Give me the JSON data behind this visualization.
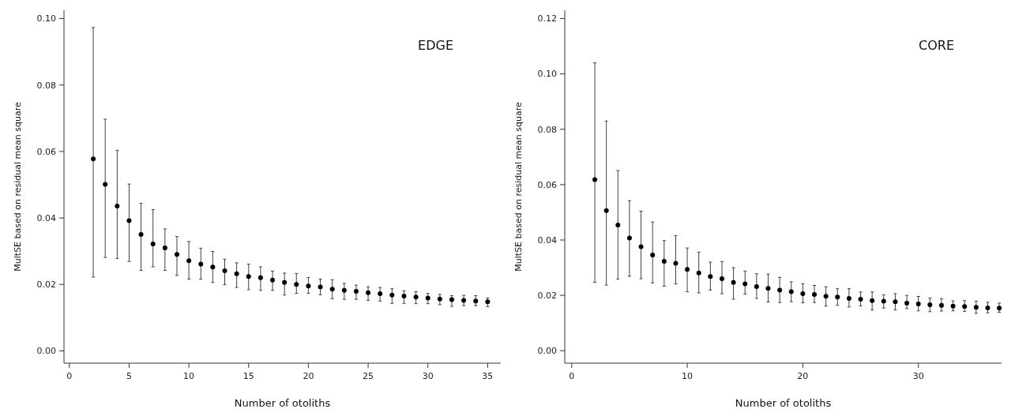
{
  "chart_data": [
    {
      "type": "scatter",
      "title": "EDGE",
      "xlabel": "Number of otoliths",
      "ylabel": "MultSE based on residual mean square",
      "marker": "circle",
      "grid": false,
      "x": [
        2,
        3,
        4,
        5,
        6,
        7,
        8,
        9,
        10,
        11,
        12,
        13,
        14,
        15,
        16,
        17,
        18,
        19,
        20,
        21,
        22,
        23,
        24,
        25,
        26,
        27,
        28,
        29,
        30,
        31,
        32,
        33,
        34,
        35
      ],
      "series": [
        {
          "color": "#000000",
          "values": [
            0.0578,
            0.0501,
            0.0436,
            0.0392,
            0.035,
            0.0322,
            0.031,
            0.029,
            0.0271,
            0.0261,
            0.0252,
            0.0241,
            0.0232,
            0.0224,
            0.022,
            0.0213,
            0.0206,
            0.02,
            0.0195,
            0.0192,
            0.0186,
            0.0182,
            0.0179,
            0.0175,
            0.0172,
            0.0168,
            0.0165,
            0.0162,
            0.0159,
            0.0156,
            0.0154,
            0.0152,
            0.015,
            0.0148
          ],
          "errors": [
            [
              0.0222,
              0.0973
            ],
            [
              0.0281,
              0.0697
            ],
            [
              0.0278,
              0.0603
            ],
            [
              0.0269,
              0.0502
            ],
            [
              0.0242,
              0.0444
            ],
            [
              0.0253,
              0.0425
            ],
            [
              0.0242,
              0.0367
            ],
            [
              0.0227,
              0.0344
            ],
            [
              0.0216,
              0.0329
            ],
            [
              0.0216,
              0.0309
            ],
            [
              0.0206,
              0.0299
            ],
            [
              0.0199,
              0.0276
            ],
            [
              0.0191,
              0.0265
            ],
            [
              0.0184,
              0.0261
            ],
            [
              0.0182,
              0.0253
            ],
            [
              0.0182,
              0.024
            ],
            [
              0.0168,
              0.0234
            ],
            [
              0.0173,
              0.0233
            ],
            [
              0.0173,
              0.0221
            ],
            [
              0.0169,
              0.0216
            ],
            [
              0.0157,
              0.0214
            ],
            [
              0.0155,
              0.0203
            ],
            [
              0.0155,
              0.0198
            ],
            [
              0.0152,
              0.0193
            ],
            [
              0.015,
              0.0191
            ],
            [
              0.0143,
              0.0187
            ],
            [
              0.0143,
              0.0181
            ],
            [
              0.0142,
              0.0178
            ],
            [
              0.0142,
              0.0173
            ],
            [
              0.0139,
              0.017
            ],
            [
              0.0134,
              0.0166
            ],
            [
              0.0136,
              0.0167
            ],
            [
              0.0136,
              0.0166
            ],
            [
              0.0133,
              0.0159
            ]
          ]
        }
      ],
      "xlim": [
        -0.45,
        36.1
      ],
      "xticks": [
        0,
        5,
        10,
        15,
        20,
        25,
        30,
        35
      ],
      "ylim": [
        -0.0037,
        0.1025
      ],
      "yticks": [
        {
          "value": 0,
          "label": "0.00"
        },
        {
          "value": 0.02,
          "label": "0.02"
        },
        {
          "value": 0.04,
          "label": "0.04"
        },
        {
          "value": 0.06,
          "label": "0.06"
        },
        {
          "value": 0.08,
          "label": "0.08"
        },
        {
          "value": 0.1,
          "label": "0.10"
        }
      ]
    },
    {
      "type": "scatter",
      "title": "CORE",
      "xlabel": "Number of otoliths",
      "ylabel": "MultSE based on residual mean square",
      "marker": "circle",
      "grid": false,
      "x": [
        2,
        3,
        4,
        5,
        6,
        7,
        8,
        9,
        10,
        11,
        12,
        13,
        14,
        15,
        16,
        17,
        18,
        19,
        20,
        21,
        22,
        23,
        24,
        25,
        26,
        27,
        28,
        29,
        30,
        31,
        32,
        33,
        34,
        35,
        36,
        37
      ],
      "series": [
        {
          "color": "#000000",
          "values": [
            0.0618,
            0.0506,
            0.0454,
            0.0407,
            0.0376,
            0.0346,
            0.0323,
            0.0316,
            0.0294,
            0.0281,
            0.0268,
            0.026,
            0.0247,
            0.0242,
            0.0232,
            0.0225,
            0.0219,
            0.0213,
            0.0206,
            0.0203,
            0.0197,
            0.0194,
            0.0189,
            0.0186,
            0.0181,
            0.0179,
            0.0177,
            0.0172,
            0.0169,
            0.0166,
            0.0164,
            0.0161,
            0.016,
            0.0157,
            0.0155,
            0.0154
          ],
          "errors": [
            [
              0.0247,
              0.104
            ],
            [
              0.0237,
              0.083
            ],
            [
              0.0259,
              0.0651
            ],
            [
              0.0269,
              0.0542
            ],
            [
              0.026,
              0.0504
            ],
            [
              0.0245,
              0.0465
            ],
            [
              0.0233,
              0.0398
            ],
            [
              0.0241,
              0.0416
            ],
            [
              0.0213,
              0.0371
            ],
            [
              0.0209,
              0.0356
            ],
            [
              0.0219,
              0.032
            ],
            [
              0.0206,
              0.0322
            ],
            [
              0.0186,
              0.03
            ],
            [
              0.0205,
              0.0288
            ],
            [
              0.0189,
              0.0278
            ],
            [
              0.0176,
              0.0277
            ],
            [
              0.0174,
              0.0265
            ],
            [
              0.0177,
              0.0249
            ],
            [
              0.0173,
              0.0242
            ],
            [
              0.0174,
              0.0236
            ],
            [
              0.0161,
              0.0231
            ],
            [
              0.0164,
              0.0224
            ],
            [
              0.0158,
              0.0224
            ],
            [
              0.0162,
              0.0212
            ],
            [
              0.0147,
              0.0212
            ],
            [
              0.0154,
              0.0202
            ],
            [
              0.0147,
              0.0206
            ],
            [
              0.0152,
              0.02
            ],
            [
              0.0144,
              0.0196
            ],
            [
              0.0141,
              0.019
            ],
            [
              0.0143,
              0.0188
            ],
            [
              0.0144,
              0.018
            ],
            [
              0.0142,
              0.0181
            ],
            [
              0.0135,
              0.0179
            ],
            [
              0.0137,
              0.0175
            ],
            [
              0.0139,
              0.0172
            ]
          ]
        }
      ],
      "xlim": [
        -0.6,
        37.2
      ],
      "xticks": [
        0,
        10,
        20,
        30
      ],
      "ylim": [
        -0.0045,
        0.123
      ],
      "yticks": [
        {
          "value": 0,
          "label": "0.00"
        },
        {
          "value": 0.02,
          "label": "0.02"
        },
        {
          "value": 0.04,
          "label": "0.04"
        },
        {
          "value": 0.06,
          "label": "0.06"
        },
        {
          "value": 0.08,
          "label": "0.08"
        },
        {
          "value": 0.1,
          "label": "0.10"
        },
        {
          "value": 0.12,
          "label": "0.12"
        }
      ]
    }
  ]
}
